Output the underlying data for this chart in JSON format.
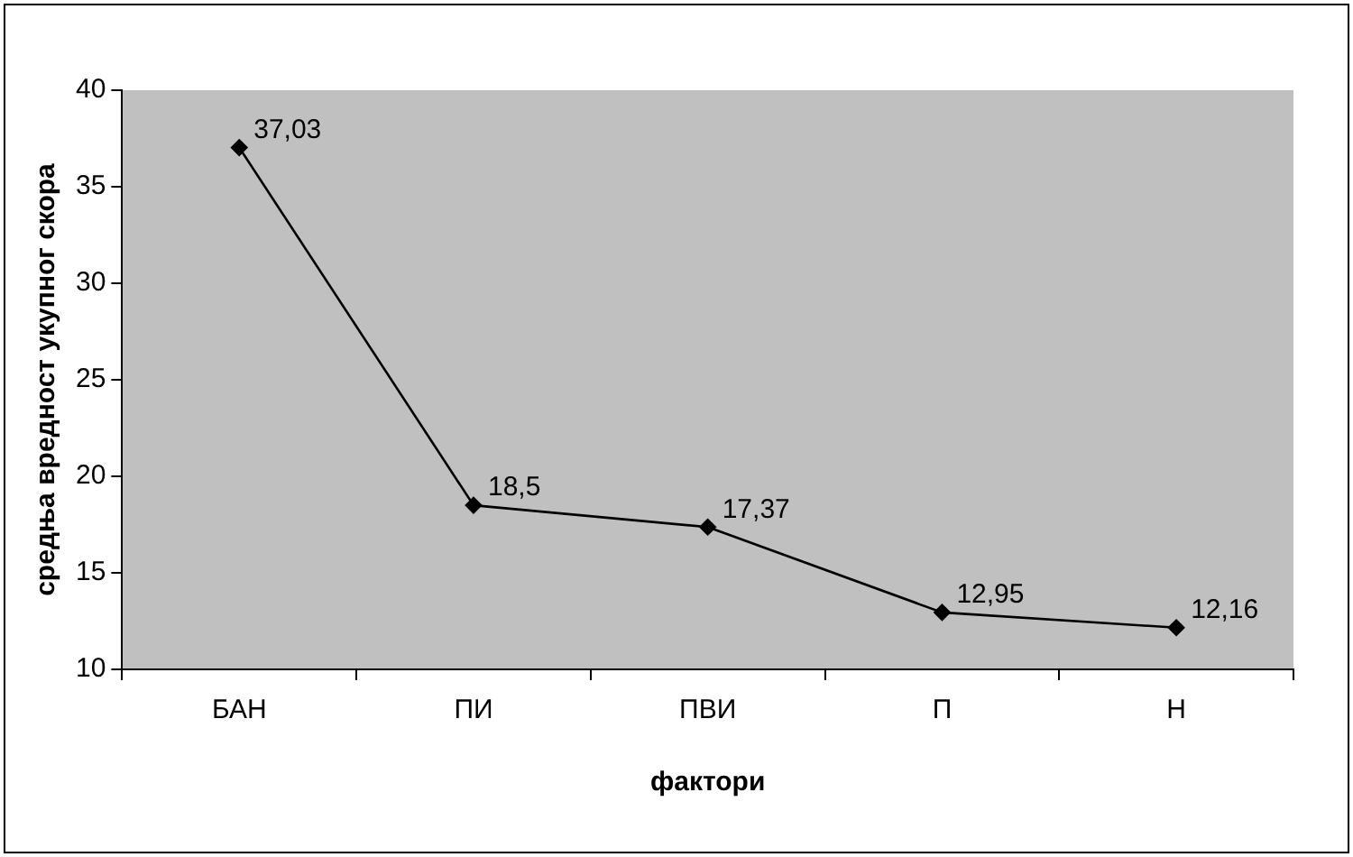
{
  "chart_data": {
    "type": "line",
    "xlabel": "фактори",
    "ylabel": "средња вредност укупног скора",
    "categories": [
      "БАН",
      "ПИ",
      "ПВИ",
      "П",
      "Н"
    ],
    "series": [
      {
        "color": "#000000",
        "values": [
          37.03,
          18.5,
          17.37,
          12.95,
          12.16
        ],
        "value_labels": [
          "37,03",
          "18,5",
          "17,37",
          "12,95",
          "12,16"
        ]
      }
    ],
    "ylim": [
      10,
      40
    ],
    "yticks": [
      10,
      15,
      20,
      25,
      30,
      35,
      40
    ],
    "grid": false,
    "legend": false,
    "marker": "diamond",
    "line_style": "solid"
  }
}
